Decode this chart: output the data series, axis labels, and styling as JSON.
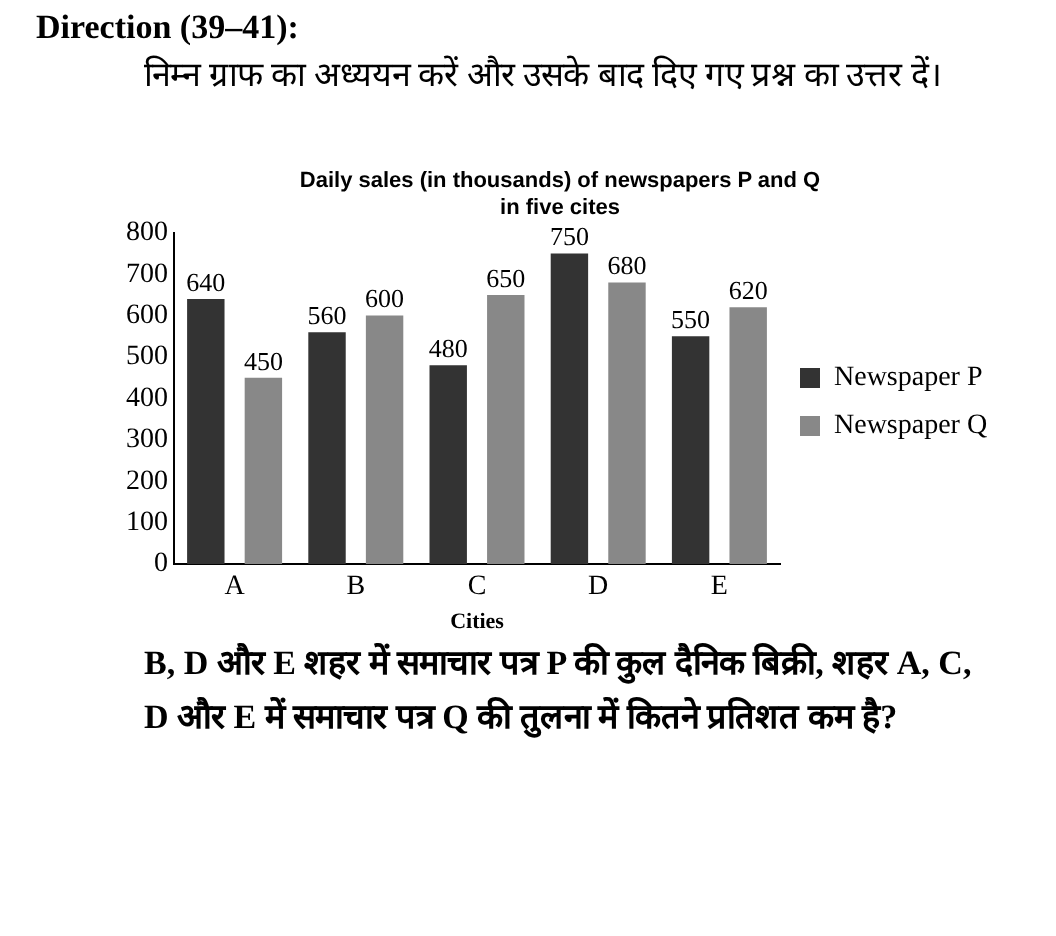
{
  "chart_data": {
    "type": "bar",
    "title": "Daily sales (in thousands) of newspapers P and Q\nin five cites",
    "xlabel": "Cities",
    "annotations": [
      "Direction (39–41):",
      "निम्न ग्राफ का अध्ययन करें और उसके बाद दिए गए प्रश्न का उत्तर दें।",
      "B, D और E शहर में समाचार पत्र P की कुल दैनिक बिक्री, शहर A, C, D और E में समाचार पत्र Q की तुलना में कितने प्रतिशत कम है?"
    ],
    "categories": [
      "A",
      "B",
      "C",
      "D",
      "E"
    ],
    "series": [
      {
        "name": "Newspaper P",
        "color": "#333333",
        "values": [
          640,
          560,
          480,
          750,
          550
        ]
      },
      {
        "name": "Newspaper Q",
        "color": "#888888",
        "values": [
          450,
          600,
          650,
          680,
          620
        ]
      }
    ],
    "ylim": [
      0,
      800
    ],
    "yticks": [
      0,
      100,
      200,
      300,
      400,
      500,
      600,
      700,
      800
    ],
    "grid": false,
    "legend": "right",
    "data_labels": true
  }
}
